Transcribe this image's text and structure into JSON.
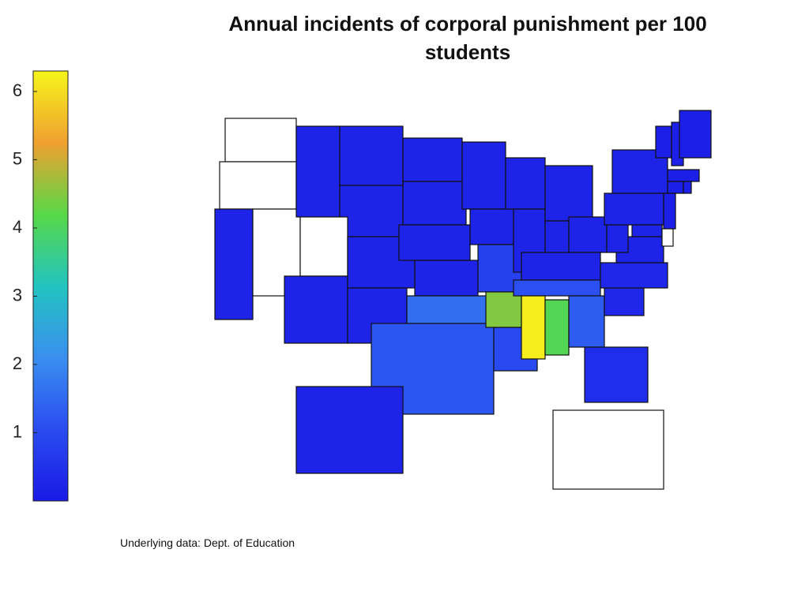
{
  "chart_data": {
    "type": "choropleth",
    "title": "Annual incidents of corporal punishment per 100 students",
    "note": "Underlying data: Dept. of Education",
    "clim": [
      0,
      6.3
    ],
    "cticks": [
      1,
      2,
      3,
      4,
      5,
      6
    ],
    "colormap": [
      "#1a1ae6",
      "#2a4cf0",
      "#3a8ff0",
      "#22c4c0",
      "#58d848",
      "#f0a030",
      "#f5f51a"
    ],
    "missing_color": "#ffffff",
    "values": [
      null,
      null,
      0.2,
      null,
      0.2,
      0.2,
      0.2,
      null,
      0.2,
      0.2,
      0.2,
      0.2,
      0.2,
      0.2,
      0.2,
      1.6,
      1.2,
      0.2,
      0.2,
      0.8,
      4.5,
      1.0,
      0.2,
      0.2,
      0.2,
      0.2,
      0.2,
      0.2,
      1.1,
      6.2,
      4.1,
      1.3,
      0.4,
      0.3,
      0.3,
      0.2,
      0.2,
      0.2,
      0.2,
      0.1,
      0.1,
      0.1,
      0.1,
      0.1,
      0.1,
      0.1,
      0.2,
      null,
      0.2,
      null
    ]
  }
}
